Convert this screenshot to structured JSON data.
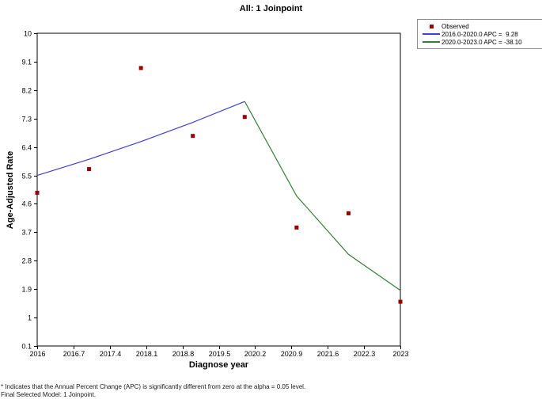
{
  "footnotes": [
    "* Indicates that the Annual Percent Change (APC) is significantly different from zero at the alpha = 0.05 level.",
    "Final Selected Model: 1 Joinpoint."
  ],
  "chart_data": {
    "type": "line",
    "title": "All: 1 Joinpoint",
    "xlabel": "Diagnose year",
    "ylabel": "Age-Adjusted Rate",
    "xlim": [
      2016,
      2023
    ],
    "ylim": [
      0.1,
      10
    ],
    "grid": false,
    "legend_position": "top-right-outside",
    "x_ticks": [
      {
        "value": 2016,
        "label": "2016"
      },
      {
        "value": 2016.7,
        "label": "2016.7"
      },
      {
        "value": 2017.4,
        "label": "2017.4"
      },
      {
        "value": 2018.1,
        "label": "2018.1"
      },
      {
        "value": 2018.8,
        "label": "2018.8"
      },
      {
        "value": 2019.5,
        "label": "2019.5"
      },
      {
        "value": 2020.2,
        "label": "2020.2"
      },
      {
        "value": 2020.9,
        "label": "2020.9"
      },
      {
        "value": 2021.6,
        "label": "2021.6"
      },
      {
        "value": 2022.3,
        "label": "2022.3"
      },
      {
        "value": 2023,
        "label": "2023"
      }
    ],
    "y_ticks": [
      {
        "value": 10,
        "label": "10"
      },
      {
        "value": 9.1,
        "label": "9.1"
      },
      {
        "value": 8.2,
        "label": "8.2"
      },
      {
        "value": 7.3,
        "label": "7.3"
      },
      {
        "value": 6.4,
        "label": "6.4"
      },
      {
        "value": 5.5,
        "label": "5.5"
      },
      {
        "value": 4.6,
        "label": "4.6"
      },
      {
        "value": 3.7,
        "label": "3.7"
      },
      {
        "value": 2.8,
        "label": "2.8"
      },
      {
        "value": 1.9,
        "label": "1.9"
      },
      {
        "value": 1,
        "label": "1"
      },
      {
        "value": 0.1,
        "label": "0.1"
      }
    ],
    "series": [
      {
        "id": "observed",
        "name": "Observed",
        "type": "scatter",
        "marker": "square",
        "color": "#990000",
        "x": [
          2016,
          2017,
          2018,
          2019,
          2020,
          2021,
          2022,
          2023
        ],
        "y": [
          4.95,
          5.7,
          8.9,
          6.75,
          7.35,
          3.85,
          4.3,
          1.5
        ]
      },
      {
        "id": "segment1",
        "name": "2016.0-2020.0 APC =  9.28",
        "type": "line",
        "color": "#4040cc",
        "apc": 9.28,
        "x": [
          2016,
          2017,
          2018,
          2019,
          2020
        ],
        "y": [
          5.5,
          6.01,
          6.57,
          7.18,
          7.84
        ]
      },
      {
        "id": "segment2",
        "name": "2020.0-2023.0 APC = -38.10",
        "type": "line",
        "color": "#338033",
        "apc": -38.1,
        "x": [
          2020,
          2021,
          2022,
          2023
        ],
        "y": [
          7.84,
          4.85,
          3.0,
          1.86
        ]
      }
    ]
  }
}
